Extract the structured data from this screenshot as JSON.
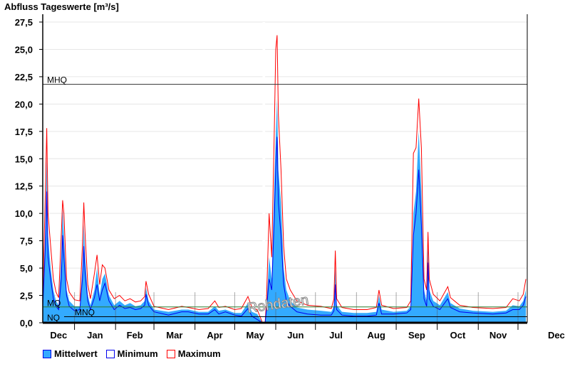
{
  "chart_data": {
    "type": "area",
    "title": "Abfluss Tageswerte [m³/s]",
    "ylim": [
      0,
      27.5
    ],
    "yticks": [
      "0,0",
      "2,5",
      "5,0",
      "7,5",
      "10,0",
      "12,5",
      "15,0",
      "17,5",
      "20,0",
      "22,5",
      "25,0",
      "27,5"
    ],
    "ytick_values": [
      0,
      2.5,
      5,
      7.5,
      10,
      12.5,
      15,
      17.5,
      20,
      22.5,
      25,
      27.5
    ],
    "xlim_days": [
      0,
      366
    ],
    "month_labels": [
      "Dec",
      "Jan",
      "Feb",
      "Mar",
      "Apr",
      "May",
      "Jun",
      "Jul",
      "Aug",
      "Sep",
      "Oct",
      "Nov",
      "Dec"
    ],
    "month_boundaries_days": [
      24,
      55,
      84,
      115,
      145,
      176,
      206,
      237,
      267,
      298,
      329,
      359
    ],
    "gap_days": [
      166,
      168
    ],
    "reference_lines": [
      {
        "label": "MHQ",
        "value": 21.8,
        "color": "#333333"
      },
      {
        "label": "MQ",
        "value": 1.45,
        "color": "#2a7a2a"
      },
      {
        "label": "MNQ",
        "value": 0.55,
        "color": "#000000"
      },
      {
        "label": "NQ",
        "value": 0.55,
        "color": "#000000"
      }
    ],
    "series": [
      {
        "name": "Mittelwert",
        "color": "#33aaff",
        "points": [
          [
            0,
            1.8
          ],
          [
            2,
            9
          ],
          [
            3,
            15
          ],
          [
            4,
            8
          ],
          [
            6,
            5
          ],
          [
            8,
            3
          ],
          [
            10,
            2
          ],
          [
            12,
            1.6
          ],
          [
            14,
            6
          ],
          [
            15,
            10.5
          ],
          [
            16,
            8
          ],
          [
            18,
            3
          ],
          [
            20,
            2
          ],
          [
            24,
            1.5
          ],
          [
            28,
            1.5
          ],
          [
            30,
            5
          ],
          [
            31,
            9
          ],
          [
            32,
            6
          ],
          [
            34,
            2.5
          ],
          [
            36,
            1.6
          ],
          [
            39,
            3
          ],
          [
            41,
            5
          ],
          [
            43,
            2.5
          ],
          [
            45,
            4
          ],
          [
            47,
            4.5
          ],
          [
            50,
            2.5
          ],
          [
            54,
            1.6
          ],
          [
            58,
            2
          ],
          [
            62,
            1.6
          ],
          [
            66,
            1.8
          ],
          [
            70,
            1.5
          ],
          [
            74,
            1.6
          ],
          [
            77,
            2
          ],
          [
            78,
            3.2
          ],
          [
            80,
            2
          ],
          [
            84,
            1.2
          ],
          [
            95,
            1
          ],
          [
            105,
            1.2
          ],
          [
            110,
            1.2
          ],
          [
            118,
            1
          ],
          [
            125,
            1
          ],
          [
            130,
            1.5
          ],
          [
            133,
            1.1
          ],
          [
            138,
            1.2
          ],
          [
            145,
            0.9
          ],
          [
            150,
            0.9
          ],
          [
            155,
            1.8
          ],
          [
            158,
            1
          ],
          [
            162,
            0.8
          ],
          [
            166,
            0
          ],
          [
            168,
            0
          ],
          [
            169,
            1.5
          ],
          [
            171,
            6
          ],
          [
            173,
            4
          ],
          [
            175,
            13
          ],
          [
            176,
            17
          ],
          [
            177,
            20.5
          ],
          [
            178,
            14
          ],
          [
            180,
            11
          ],
          [
            182,
            5
          ],
          [
            184,
            3
          ],
          [
            187,
            2
          ],
          [
            192,
            1.4
          ],
          [
            200,
            1.2
          ],
          [
            210,
            1.1
          ],
          [
            218,
            1
          ],
          [
            220,
            1.5
          ],
          [
            221,
            5
          ],
          [
            222,
            1.6
          ],
          [
            226,
            1
          ],
          [
            235,
            0.9
          ],
          [
            245,
            0.9
          ],
          [
            252,
            1
          ],
          [
            254,
            2.5
          ],
          [
            256,
            1.2
          ],
          [
            265,
            1
          ],
          [
            275,
            1.1
          ],
          [
            278,
            1.5
          ],
          [
            280,
            10
          ],
          [
            282,
            12
          ],
          [
            284,
            17.5
          ],
          [
            286,
            12
          ],
          [
            288,
            3
          ],
          [
            290,
            2
          ],
          [
            291,
            7
          ],
          [
            292,
            3
          ],
          [
            295,
            2
          ],
          [
            300,
            1.6
          ],
          [
            306,
            2.8
          ],
          [
            308,
            1.8
          ],
          [
            315,
            1.3
          ],
          [
            325,
            1.1
          ],
          [
            340,
            1
          ],
          [
            350,
            1.1
          ],
          [
            355,
            1.6
          ],
          [
            360,
            1.5
          ],
          [
            363,
            2
          ],
          [
            365,
            3
          ]
        ]
      },
      {
        "name": "Minimum",
        "color": "#0000ee",
        "points": [
          [
            0,
            1.4
          ],
          [
            2,
            7
          ],
          [
            3,
            12
          ],
          [
            4,
            6
          ],
          [
            6,
            4
          ],
          [
            8,
            2.2
          ],
          [
            10,
            1.5
          ],
          [
            12,
            1.2
          ],
          [
            14,
            4
          ],
          [
            15,
            8
          ],
          [
            16,
            6
          ],
          [
            18,
            2.5
          ],
          [
            20,
            1.5
          ],
          [
            24,
            1.1
          ],
          [
            28,
            1.2
          ],
          [
            30,
            4
          ],
          [
            31,
            7
          ],
          [
            32,
            4.5
          ],
          [
            34,
            2
          ],
          [
            36,
            1.2
          ],
          [
            39,
            2.3
          ],
          [
            41,
            3.5
          ],
          [
            43,
            2
          ],
          [
            45,
            3
          ],
          [
            47,
            3.6
          ],
          [
            50,
            2
          ],
          [
            54,
            1.2
          ],
          [
            58,
            1.6
          ],
          [
            62,
            1.3
          ],
          [
            66,
            1.4
          ],
          [
            70,
            1.2
          ],
          [
            74,
            1.3
          ],
          [
            77,
            1.6
          ],
          [
            78,
            2.6
          ],
          [
            80,
            1.6
          ],
          [
            84,
            1
          ],
          [
            95,
            0.7
          ],
          [
            105,
            1
          ],
          [
            110,
            1
          ],
          [
            118,
            0.8
          ],
          [
            125,
            0.8
          ],
          [
            130,
            1.2
          ],
          [
            133,
            0.8
          ],
          [
            138,
            1
          ],
          [
            145,
            0.7
          ],
          [
            150,
            0.6
          ],
          [
            155,
            1.3
          ],
          [
            158,
            0.6
          ],
          [
            162,
            0.3
          ],
          [
            166,
            0
          ],
          [
            168,
            0
          ],
          [
            169,
            1.2
          ],
          [
            171,
            4
          ],
          [
            173,
            3
          ],
          [
            175,
            10
          ],
          [
            176,
            14
          ],
          [
            177,
            17
          ],
          [
            178,
            11
          ],
          [
            180,
            8
          ],
          [
            182,
            3.5
          ],
          [
            184,
            2
          ],
          [
            187,
            1.5
          ],
          [
            192,
            1
          ],
          [
            200,
            0.8
          ],
          [
            210,
            0.7
          ],
          [
            218,
            0.7
          ],
          [
            220,
            1.1
          ],
          [
            221,
            3.5
          ],
          [
            222,
            1.2
          ],
          [
            226,
            0.7
          ],
          [
            235,
            0.6
          ],
          [
            245,
            0.6
          ],
          [
            252,
            0.7
          ],
          [
            254,
            1.8
          ],
          [
            256,
            0.8
          ],
          [
            265,
            0.8
          ],
          [
            275,
            0.9
          ],
          [
            278,
            1.2
          ],
          [
            280,
            8
          ],
          [
            282,
            10
          ],
          [
            284,
            14
          ],
          [
            286,
            9
          ],
          [
            288,
            2.2
          ],
          [
            290,
            1.5
          ],
          [
            291,
            5.5
          ],
          [
            292,
            2.2
          ],
          [
            295,
            1.5
          ],
          [
            300,
            1.2
          ],
          [
            306,
            2.2
          ],
          [
            308,
            1.4
          ],
          [
            315,
            1
          ],
          [
            325,
            0.9
          ],
          [
            340,
            0.8
          ],
          [
            350,
            0.9
          ],
          [
            355,
            1.2
          ],
          [
            360,
            1.2
          ],
          [
            363,
            1.6
          ],
          [
            365,
            2.4
          ]
        ]
      },
      {
        "name": "Maximum",
        "color": "#ff0000",
        "points": [
          [
            0,
            2.4
          ],
          [
            2,
            12
          ],
          [
            3,
            17.8
          ],
          [
            4,
            10
          ],
          [
            6,
            7
          ],
          [
            8,
            4
          ],
          [
            10,
            2.8
          ],
          [
            12,
            2.3
          ],
          [
            14,
            8
          ],
          [
            15,
            11.2
          ],
          [
            16,
            10
          ],
          [
            18,
            4
          ],
          [
            20,
            2.8
          ],
          [
            24,
            2.1
          ],
          [
            28,
            2
          ],
          [
            30,
            7
          ],
          [
            31,
            11
          ],
          [
            32,
            8
          ],
          [
            34,
            3.5
          ],
          [
            36,
            2.2
          ],
          [
            39,
            4.5
          ],
          [
            41,
            6.2
          ],
          [
            43,
            3.5
          ],
          [
            45,
            5.3
          ],
          [
            47,
            5
          ],
          [
            50,
            3
          ],
          [
            54,
            2.2
          ],
          [
            58,
            2.5
          ],
          [
            62,
            2
          ],
          [
            66,
            2.2
          ],
          [
            70,
            1.9
          ],
          [
            74,
            2
          ],
          [
            77,
            2.4
          ],
          [
            78,
            3.8
          ],
          [
            80,
            2.6
          ],
          [
            84,
            1.5
          ],
          [
            95,
            1.2
          ],
          [
            105,
            1.5
          ],
          [
            110,
            1.4
          ],
          [
            118,
            1.2
          ],
          [
            125,
            1.3
          ],
          [
            130,
            2
          ],
          [
            133,
            1.4
          ],
          [
            138,
            1.5
          ],
          [
            145,
            1.2
          ],
          [
            150,
            1.3
          ],
          [
            155,
            2.4
          ],
          [
            158,
            1.4
          ],
          [
            162,
            1.2
          ],
          [
            166,
            0
          ],
          [
            168,
            0
          ],
          [
            169,
            2
          ],
          [
            171,
            10
          ],
          [
            173,
            6
          ],
          [
            175,
            18
          ],
          [
            176,
            25
          ],
          [
            177,
            26.3
          ],
          [
            178,
            19
          ],
          [
            180,
            14
          ],
          [
            182,
            7
          ],
          [
            184,
            4
          ],
          [
            187,
            3
          ],
          [
            192,
            2
          ],
          [
            200,
            1.6
          ],
          [
            210,
            1.5
          ],
          [
            218,
            1.3
          ],
          [
            220,
            2.2
          ],
          [
            221,
            6.6
          ],
          [
            222,
            2.2
          ],
          [
            226,
            1.4
          ],
          [
            235,
            1.2
          ],
          [
            245,
            1.2
          ],
          [
            252,
            1.4
          ],
          [
            254,
            3
          ],
          [
            256,
            1.6
          ],
          [
            265,
            1.3
          ],
          [
            275,
            1.4
          ],
          [
            278,
            2
          ],
          [
            280,
            15.5
          ],
          [
            282,
            16
          ],
          [
            284,
            20.5
          ],
          [
            286,
            16
          ],
          [
            288,
            4
          ],
          [
            290,
            3
          ],
          [
            291,
            8.3
          ],
          [
            292,
            4
          ],
          [
            295,
            2.6
          ],
          [
            300,
            2
          ],
          [
            306,
            3.3
          ],
          [
            308,
            2.3
          ],
          [
            315,
            1.6
          ],
          [
            325,
            1.4
          ],
          [
            340,
            1.3
          ],
          [
            350,
            1.4
          ],
          [
            355,
            2.2
          ],
          [
            360,
            2
          ],
          [
            363,
            2.6
          ],
          [
            365,
            4
          ]
        ]
      }
    ],
    "legend": [
      {
        "label": "Mittelwert",
        "fill": "#33aaff",
        "border": "#0000ee"
      },
      {
        "label": "Minimum",
        "fill": "#ffffff",
        "border": "#0000ee"
      },
      {
        "label": "Maximum",
        "fill": "#ffffff",
        "border": "#ff0000"
      }
    ],
    "legend_position": "bottom-left",
    "watermark": "Rohdaten"
  }
}
